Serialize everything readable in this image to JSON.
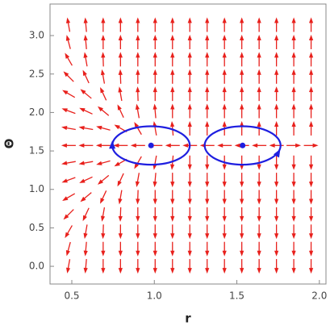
{
  "chart_data": {
    "type": "vector",
    "xlabel": "r",
    "ylabel": "Θ",
    "xlim": [
      0.368,
      2.04
    ],
    "ylim": [
      -0.23,
      3.41
    ],
    "xticks": [
      0.5,
      {
        "value": 1,
        "label": "1.0"
      },
      1.5,
      {
        "value": 2,
        "label": "2.0"
      }
    ],
    "yticks": [
      {
        "value": 0,
        "label": "0.0"
      },
      0.5,
      {
        "value": 1,
        "label": "1.0"
      },
      1.5,
      {
        "value": 2,
        "label": "2.0"
      },
      2.5,
      {
        "value": 3,
        "label": "3.0"
      }
    ],
    "field": {
      "color": "#e8201c",
      "x": [
        0.48,
        0.585,
        0.69,
        0.795,
        0.9,
        1.005,
        1.11,
        1.215,
        1.32,
        1.425,
        1.53,
        1.635,
        1.74,
        1.845,
        1.95
      ],
      "y": [
        0,
        0.224,
        0.449,
        0.673,
        0.898,
        1.122,
        1.346,
        1.571,
        1.795,
        2.02,
        2.244,
        2.468,
        2.693,
        2.917,
        3.142
      ],
      "angles": [
        [
          260,
          265,
          270,
          270,
          270,
          270,
          270,
          270,
          270,
          270,
          270,
          270,
          270,
          270,
          270
        ],
        [
          255,
          265,
          270,
          270,
          270,
          270,
          270,
          270,
          270,
          270,
          270,
          270,
          270,
          270,
          270
        ],
        [
          240,
          260,
          268,
          270,
          270,
          270,
          270,
          270,
          270,
          270,
          270,
          270,
          270,
          270,
          270
        ],
        [
          225,
          245,
          260,
          268,
          270,
          270,
          270,
          270,
          270,
          270,
          270,
          270,
          270,
          270,
          270
        ],
        [
          210,
          220,
          245,
          260,
          268,
          270,
          270,
          270,
          270,
          270,
          270,
          270,
          270,
          270,
          270
        ],
        [
          200,
          205,
          220,
          245,
          260,
          265,
          270,
          270,
          270,
          270,
          270,
          270,
          270,
          270,
          270
        ],
        [
          190,
          190,
          195,
          210,
          240,
          260,
          265,
          270,
          270,
          270,
          270,
          270,
          270,
          270,
          270
        ],
        [
          180,
          180,
          180,
          180,
          180,
          180,
          180,
          180,
          180,
          180,
          180,
          180,
          180,
          0,
          0
        ],
        [
          170,
          170,
          165,
          150,
          120,
          100,
          95,
          90,
          90,
          90,
          90,
          90,
          90,
          90,
          90
        ],
        [
          160,
          155,
          140,
          115,
          100,
          95,
          90,
          90,
          90,
          90,
          90,
          90,
          90,
          90,
          90
        ],
        [
          150,
          140,
          115,
          100,
          92,
          90,
          90,
          90,
          90,
          90,
          90,
          90,
          90,
          90,
          90
        ],
        [
          135,
          115,
          100,
          92,
          90,
          90,
          90,
          90,
          90,
          90,
          90,
          90,
          90,
          90,
          90
        ],
        [
          120,
          100,
          92,
          90,
          90,
          90,
          90,
          90,
          90,
          90,
          90,
          90,
          90,
          90,
          90
        ],
        [
          105,
          95,
          90,
          90,
          90,
          90,
          90,
          90,
          90,
          90,
          90,
          90,
          90,
          90,
          90
        ],
        [
          100,
          95,
          90,
          90,
          90,
          90,
          90,
          90,
          90,
          90,
          90,
          90,
          90,
          90,
          90
        ]
      ]
    },
    "orbits": {
      "color": "#1f1fe0",
      "cx": [
        0.98,
        1.535
      ],
      "cy": [
        1.571,
        1.571
      ],
      "rx": [
        0.235,
        0.23
      ],
      "ry": [
        0.25,
        0.25
      ]
    },
    "points": {
      "color": "#1f1fe0",
      "x": [
        0.98,
        1.535
      ],
      "y": [
        1.571,
        1.571
      ]
    }
  }
}
